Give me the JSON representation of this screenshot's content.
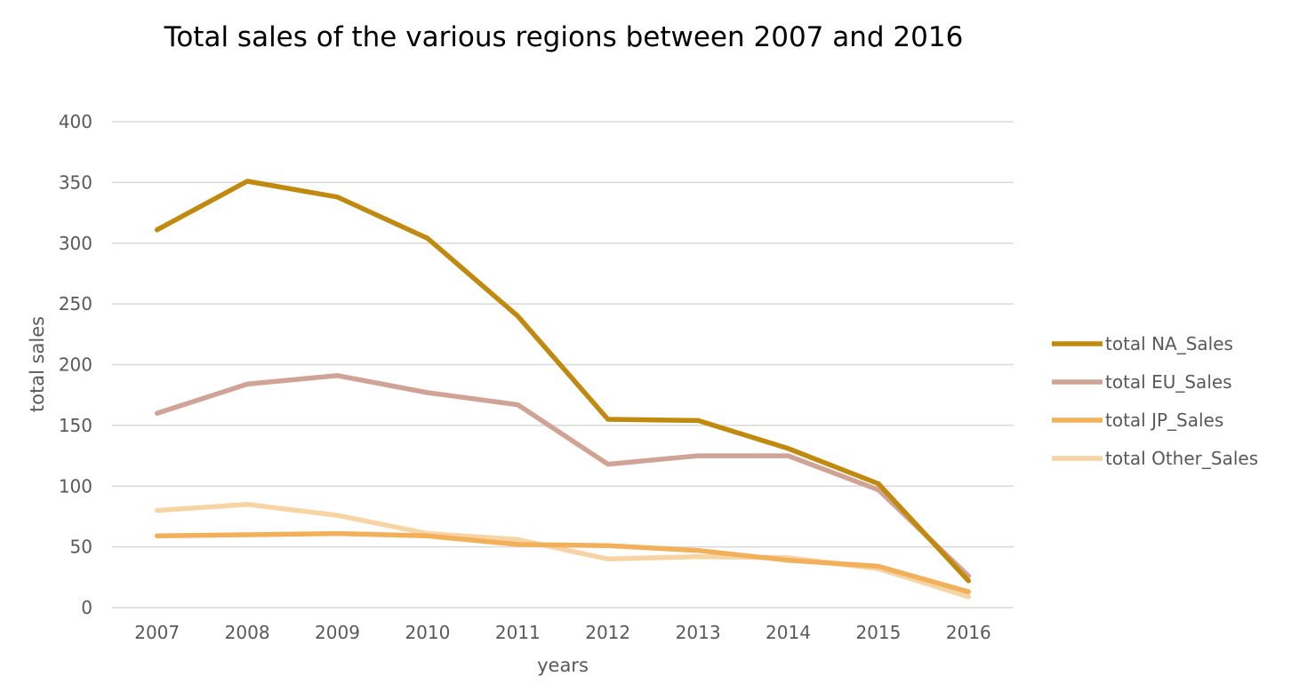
{
  "chart_data": {
    "type": "line",
    "title": "Total sales of the various regions between 2007 and 2016",
    "xlabel": "years",
    "ylabel": "total sales",
    "categories": [
      "2007",
      "2008",
      "2009",
      "2010",
      "2011",
      "2012",
      "2013",
      "2014",
      "2015",
      "2016"
    ],
    "ylim": [
      0,
      400
    ],
    "yticks": [
      0,
      50,
      100,
      150,
      200,
      250,
      300,
      350,
      400
    ],
    "grid": true,
    "legend_position": "right",
    "series": [
      {
        "name": "total NA_Sales",
        "color": "#bf8a0f",
        "values": [
          311,
          351,
          338,
          304,
          240,
          155,
          154,
          131,
          102,
          22
        ]
      },
      {
        "name": "total EU_Sales",
        "color": "#d1a396",
        "values": [
          160,
          184,
          191,
          177,
          167,
          118,
          125,
          125,
          97,
          26
        ]
      },
      {
        "name": "total JP_Sales",
        "color": "#f2b05a",
        "values": [
          59,
          60,
          61,
          59,
          52,
          51,
          47,
          39,
          34,
          13
        ]
      },
      {
        "name": "total Other_Sales",
        "color": "#f7d4a4",
        "values": [
          80,
          85,
          76,
          61,
          56,
          40,
          42,
          41,
          32,
          9
        ]
      }
    ]
  }
}
